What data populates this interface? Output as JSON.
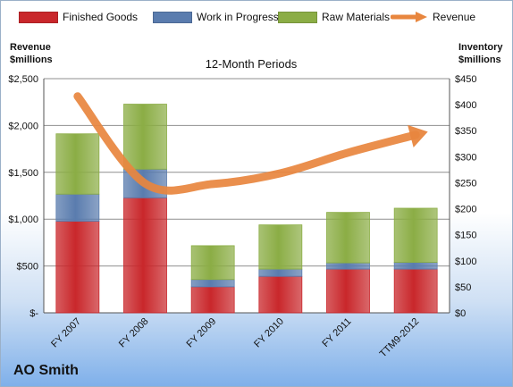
{
  "legend": {
    "items": [
      {
        "label": "Finished Goods",
        "color": "#c9272b"
      },
      {
        "label": "Work in Progress",
        "color": "#5a7cae"
      },
      {
        "label": "Raw Materials",
        "color": "#8bad45"
      },
      {
        "label": "Revenue",
        "color": "#e8863e"
      }
    ]
  },
  "left_axis_title": {
    "line1": "Revenue",
    "line2": "$millions"
  },
  "right_axis_title": {
    "line1": "Inventory",
    "line2": "$millions"
  },
  "subtitle": "12-Month Periods",
  "company": "AO Smith",
  "chart_data": {
    "type": "bar",
    "stacked": true,
    "categories": [
      "FY 2007",
      "FY 2008",
      "FY 2009",
      "FY 2010",
      "FY 2011",
      "TTM9-2012"
    ],
    "series": [
      {
        "name": "Finished Goods",
        "axis": "right",
        "color": "#c9272b",
        "values": [
          176,
          221,
          50,
          70,
          84,
          84
        ]
      },
      {
        "name": "Work in Progress",
        "axis": "right",
        "color": "#5a7cae",
        "values": [
          52,
          55,
          14,
          14,
          12,
          13
        ]
      },
      {
        "name": "Raw Materials",
        "axis": "right",
        "color": "#8bad45",
        "values": [
          116,
          125,
          65,
          85,
          97,
          104
        ]
      }
    ],
    "line_series": {
      "name": "Revenue",
      "axis": "left",
      "color": "#e8863e",
      "values": [
        2312,
        1380,
        1375,
        1490,
        1710,
        1900
      ]
    },
    "left_axis": {
      "label": "Revenue $millions",
      "ylim": [
        0,
        2500
      ],
      "ticks": [
        0,
        500,
        1000,
        1500,
        2000,
        2500
      ],
      "tick_labels": [
        "$-",
        "$500",
        "$1,000",
        "$1,500",
        "$2,000",
        "$2,500"
      ]
    },
    "right_axis": {
      "label": "Inventory $millions",
      "ylim": [
        0,
        450
      ],
      "ticks": [
        0,
        50,
        100,
        150,
        200,
        250,
        300,
        350,
        400,
        450
      ],
      "tick_labels": [
        "$0",
        "$50",
        "$100",
        "$150",
        "$200",
        "$250",
        "$300",
        "$350",
        "$400",
        "$450"
      ]
    },
    "grid": true,
    "legend_position": "top"
  }
}
